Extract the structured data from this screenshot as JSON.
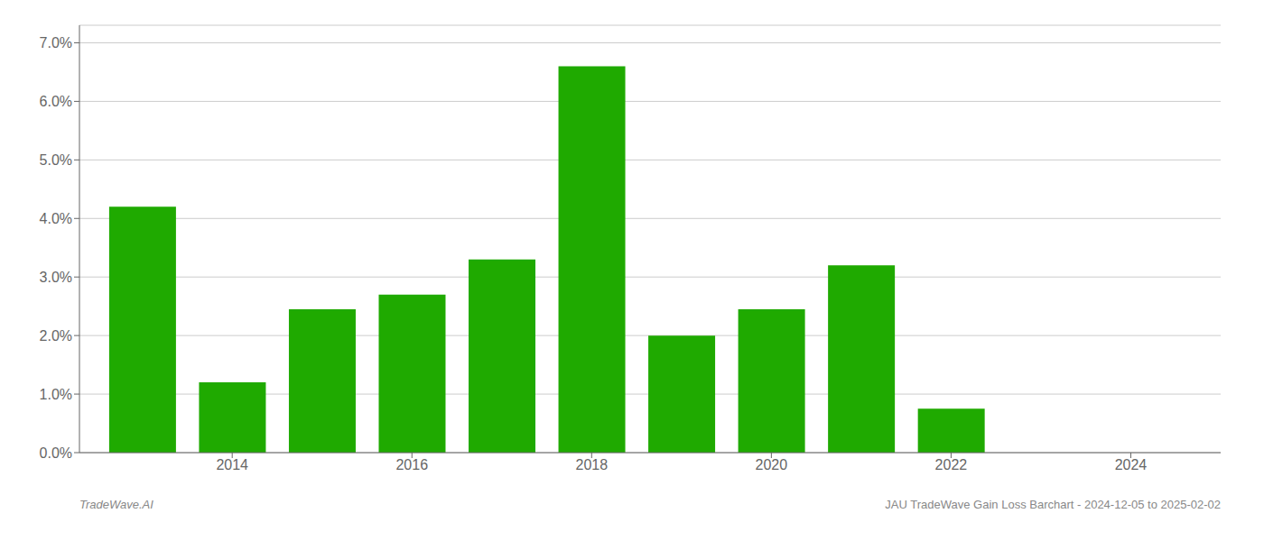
{
  "chart_data": {
    "type": "bar",
    "x": [
      2013,
      2014,
      2015,
      2016,
      2017,
      2018,
      2019,
      2020,
      2021,
      2022,
      2023
    ],
    "values": [
      0.042,
      0.012,
      0.0245,
      0.027,
      0.033,
      0.066,
      0.02,
      0.0245,
      0.032,
      0.0075,
      0.0
    ],
    "color": "#1faa00",
    "xlim": [
      2012.3,
      2025.0
    ],
    "xticks": [
      2014,
      2016,
      2018,
      2020,
      2022,
      2024
    ],
    "ylim": [
      0.0,
      0.073
    ],
    "yticks": [
      {
        "value": 0.0,
        "label": "0.0%"
      },
      {
        "value": 0.01,
        "label": "1.0%"
      },
      {
        "value": 0.02,
        "label": "2.0%"
      },
      {
        "value": 0.03,
        "label": "3.0%"
      },
      {
        "value": 0.04,
        "label": "4.0%"
      },
      {
        "value": 0.05,
        "label": "5.0%"
      },
      {
        "value": 0.06,
        "label": "6.0%"
      },
      {
        "value": 0.07,
        "label": "7.0%"
      }
    ],
    "grid": true,
    "annotations": [
      "TradeWave.AI",
      "JAU TradeWave Gain Loss Barchart - 2024-12-05 to 2025-02-02"
    ]
  }
}
